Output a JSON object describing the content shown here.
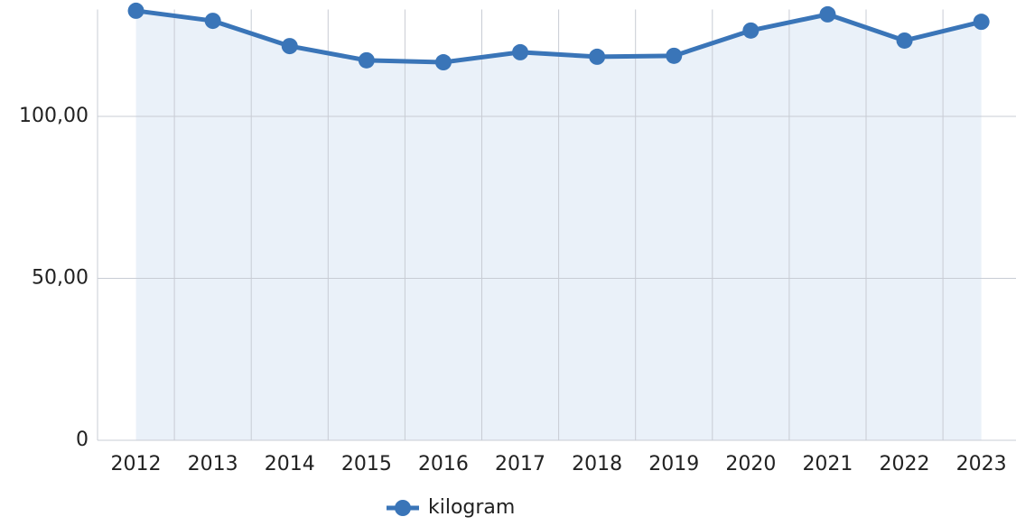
{
  "chart_data": {
    "type": "line",
    "categories": [
      "2012",
      "2013",
      "2014",
      "2015",
      "2016",
      "2017",
      "2018",
      "2019",
      "2020",
      "2021",
      "2022",
      "2023"
    ],
    "series": [
      {
        "name": "kilogram",
        "color": "#3a75b8",
        "values": [
          132.6,
          129.5,
          121.7,
          117.3,
          116.7,
          119.8,
          118.4,
          118.7,
          126.5,
          131.5,
          123.4,
          129.2
        ]
      }
    ],
    "area_color": "#eaf1f9",
    "ylim": [
      0,
      133
    ],
    "yticks": [
      0,
      {
        "value": 50,
        "label": "50,00"
      },
      {
        "value": 100,
        "label": "100,00"
      }
    ],
    "grid": true,
    "legend": "bottom"
  }
}
